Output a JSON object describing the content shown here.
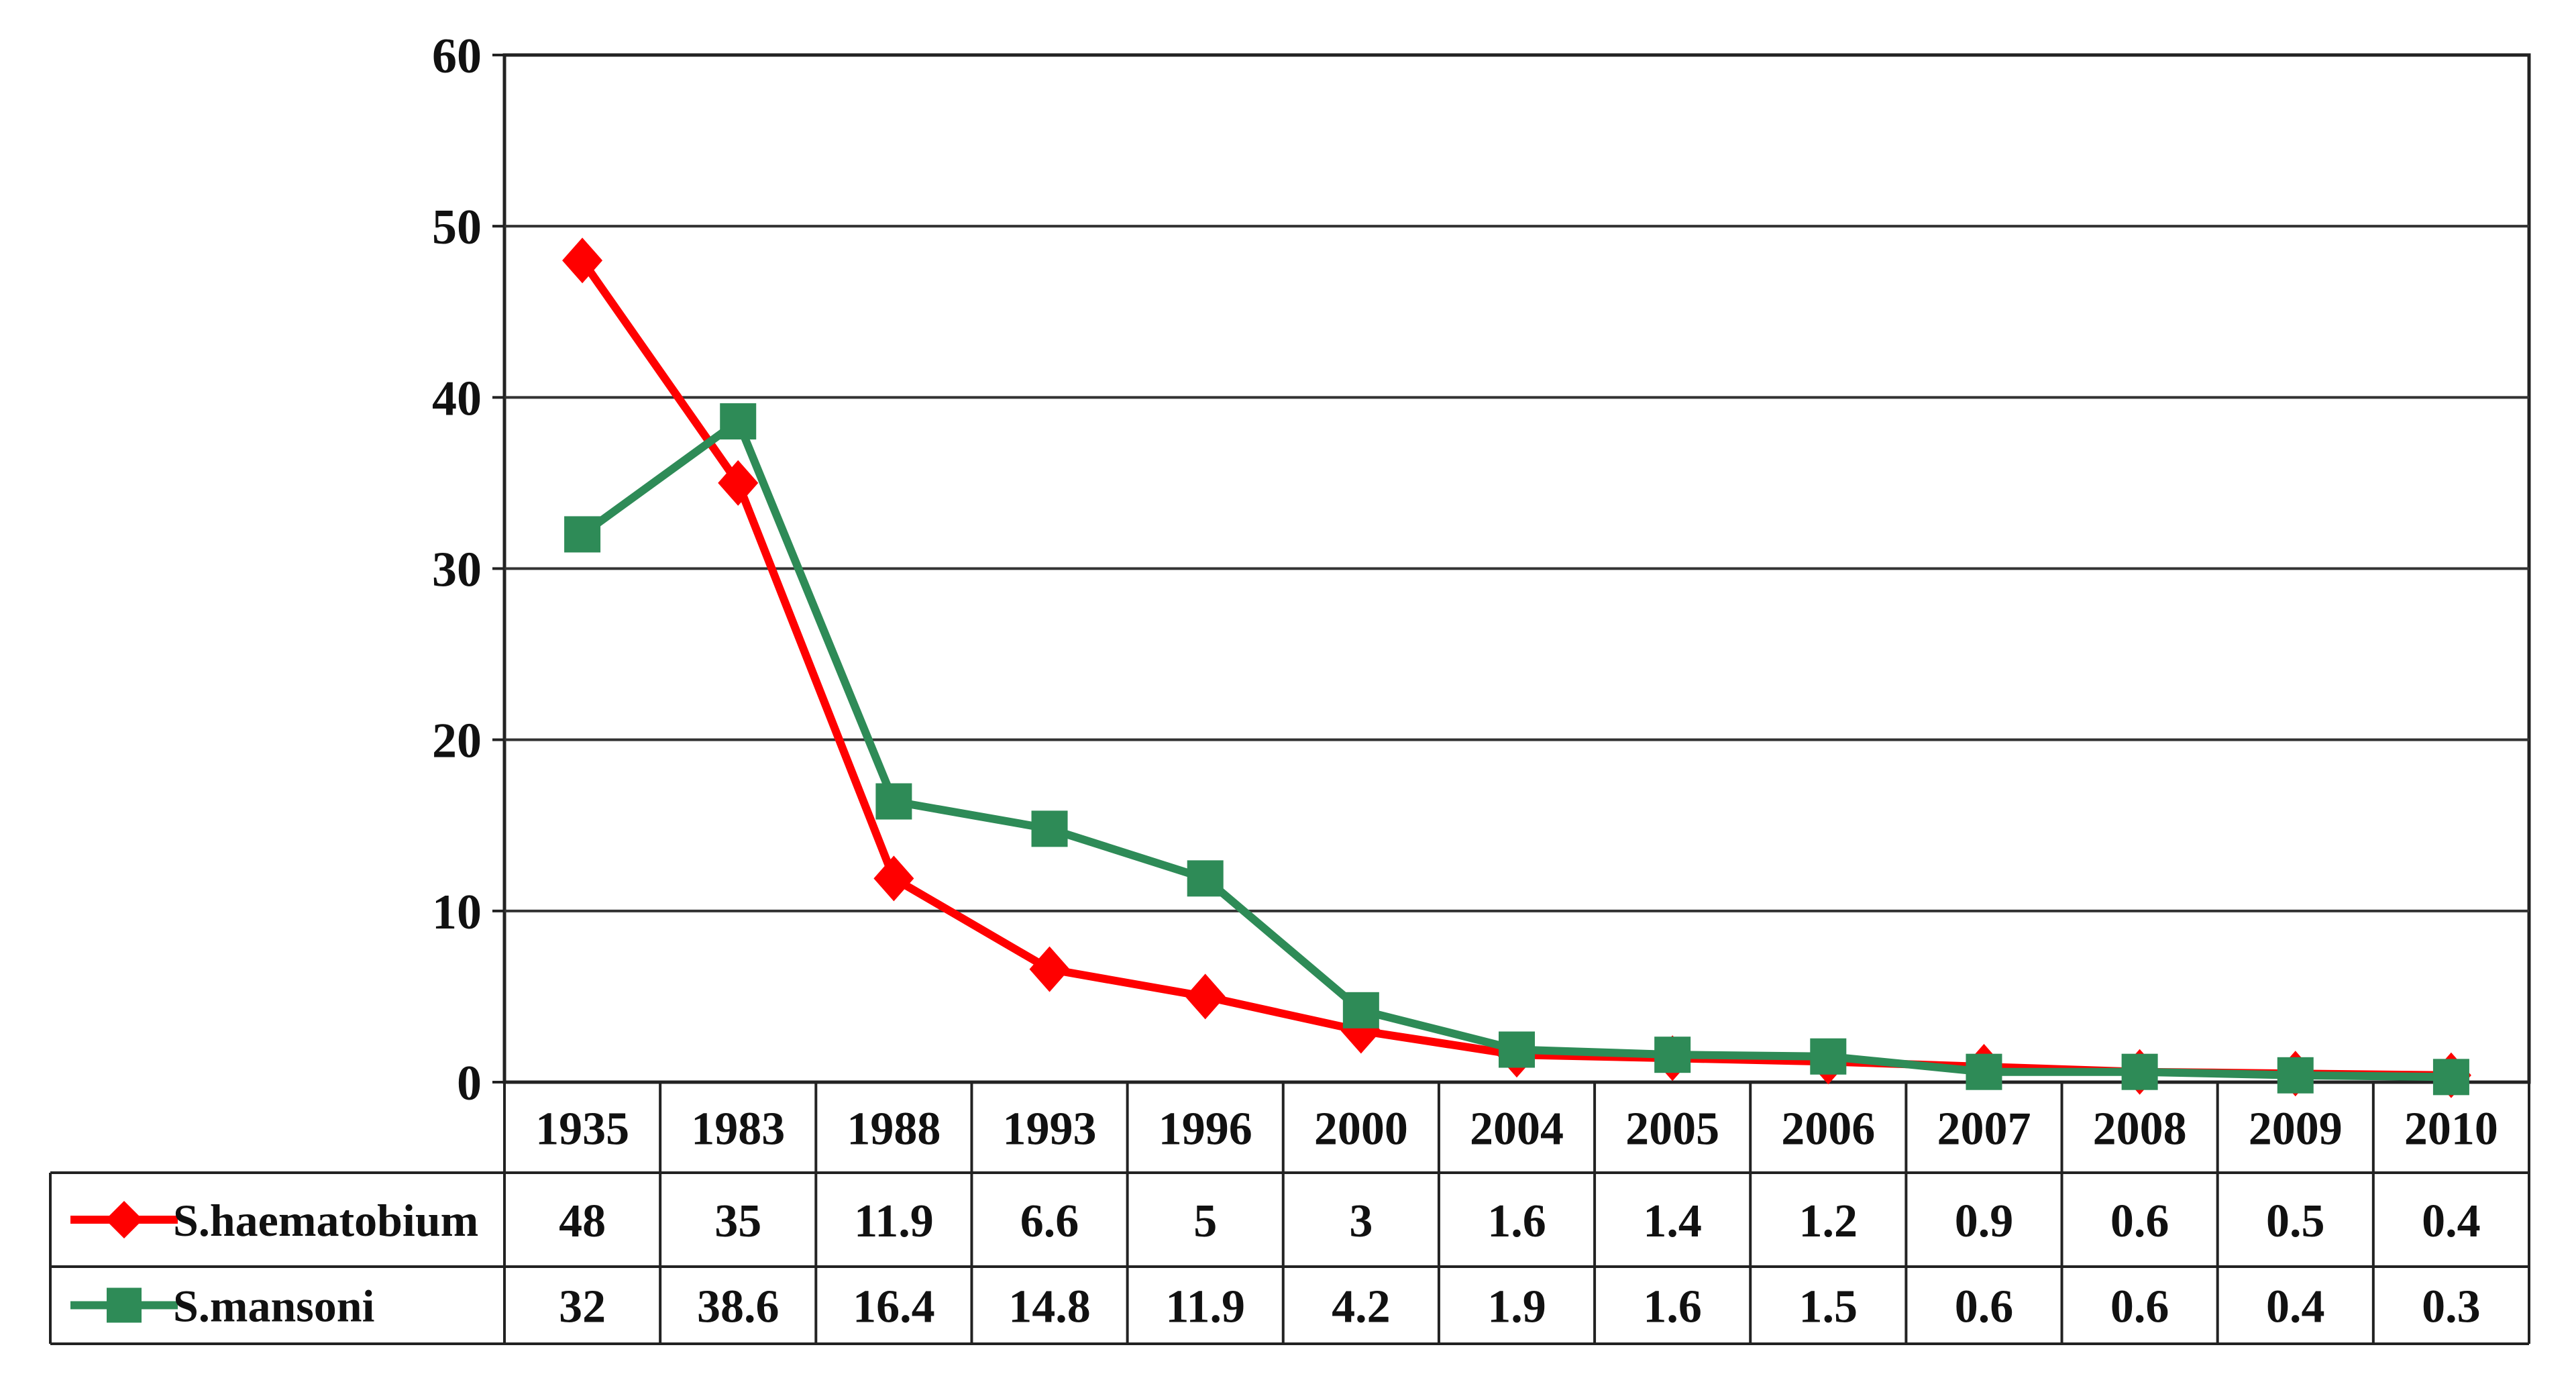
{
  "chart_data": {
    "type": "line",
    "title": "",
    "xlabel": "",
    "ylabel": "",
    "ylim": [
      0,
      60
    ],
    "yticks": [
      "0",
      "10",
      "20",
      "30",
      "40",
      "50",
      "60"
    ],
    "grid": true,
    "categories": [
      "1935",
      "1983",
      "1988",
      "1993",
      "1996",
      "2000",
      "2004",
      "2005",
      "2006",
      "2007",
      "2008",
      "2009",
      "2010"
    ],
    "series": [
      {
        "name": "S.haematobium",
        "color": "#ff0000",
        "marker": "diamond",
        "values": [
          48,
          35,
          11.9,
          6.6,
          5,
          3,
          1.6,
          1.4,
          1.2,
          0.9,
          0.6,
          0.5,
          0.4
        ],
        "labels": [
          "48",
          "35",
          "11.9",
          "6.6",
          "5",
          "3",
          "1.6",
          "1.4",
          "1.2",
          "0.9",
          "0.6",
          "0.5",
          "0.4"
        ]
      },
      {
        "name": "S.mansoni",
        "color": "#2e8b57",
        "marker": "square",
        "values": [
          32,
          38.6,
          16.4,
          14.8,
          11.9,
          4.2,
          1.9,
          1.6,
          1.5,
          0.6,
          0.6,
          0.4,
          0.3
        ],
        "labels": [
          "32",
          "38.6",
          "16.4",
          "14.8",
          "11.9",
          "4.2",
          "1.9",
          "1.6",
          "1.5",
          "0.6",
          "0.6",
          "0.4",
          "0.3"
        ]
      }
    ],
    "legend": "data-table-left"
  }
}
